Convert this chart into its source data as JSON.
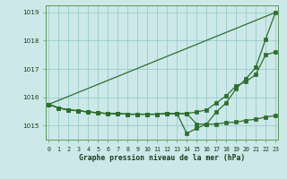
{
  "title": "Graphe pression niveau de la mer (hPa)",
  "hours": [
    0,
    1,
    2,
    3,
    4,
    5,
    6,
    7,
    8,
    9,
    10,
    11,
    12,
    13,
    14,
    15,
    16,
    17,
    18,
    19,
    20,
    21,
    22,
    23
  ],
  "line_straight": {
    "x": [
      0,
      23
    ],
    "y": [
      1015.75,
      1019.0
    ]
  },
  "line_dip": [
    1015.75,
    1015.62,
    1015.55,
    1015.52,
    1015.48,
    1015.45,
    1015.42,
    1015.42,
    1015.4,
    1015.4,
    1015.4,
    1015.4,
    1015.42,
    1015.42,
    1014.72,
    1014.9,
    1015.05,
    1015.48,
    1015.8,
    1016.3,
    1016.65,
    1017.05,
    1018.05,
    1019.0
  ],
  "line_mid": [
    1015.75,
    1015.62,
    1015.55,
    1015.52,
    1015.48,
    1015.45,
    1015.42,
    1015.42,
    1015.4,
    1015.4,
    1015.4,
    1015.4,
    1015.42,
    1015.42,
    1015.42,
    1015.48,
    1015.55,
    1015.8,
    1016.05,
    1016.4,
    1016.55,
    1016.8,
    1017.5,
    1017.6
  ],
  "line_flat": [
    1015.75,
    1015.62,
    1015.55,
    1015.52,
    1015.48,
    1015.45,
    1015.42,
    1015.42,
    1015.4,
    1015.4,
    1015.4,
    1015.4,
    1015.42,
    1015.42,
    1015.42,
    1015.05,
    1015.05,
    1015.05,
    1015.1,
    1015.12,
    1015.18,
    1015.22,
    1015.3,
    1015.35
  ],
  "bg_color": "#cce8e8",
  "grid_color": "#99cccc",
  "line_color": "#2d6e2d",
  "ylim": [
    1014.5,
    1019.25
  ],
  "xlim": [
    -0.3,
    23.3
  ],
  "yticks": [
    1015,
    1016,
    1017,
    1018,
    1019
  ],
  "xtick_labels": [
    "0",
    "1",
    "2",
    "3",
    "4",
    "5",
    "6",
    "7",
    "8",
    "9",
    "10",
    "11",
    "12",
    "13",
    "14",
    "15",
    "16",
    "17",
    "18",
    "19",
    "20",
    "21",
    "22",
    "23"
  ]
}
